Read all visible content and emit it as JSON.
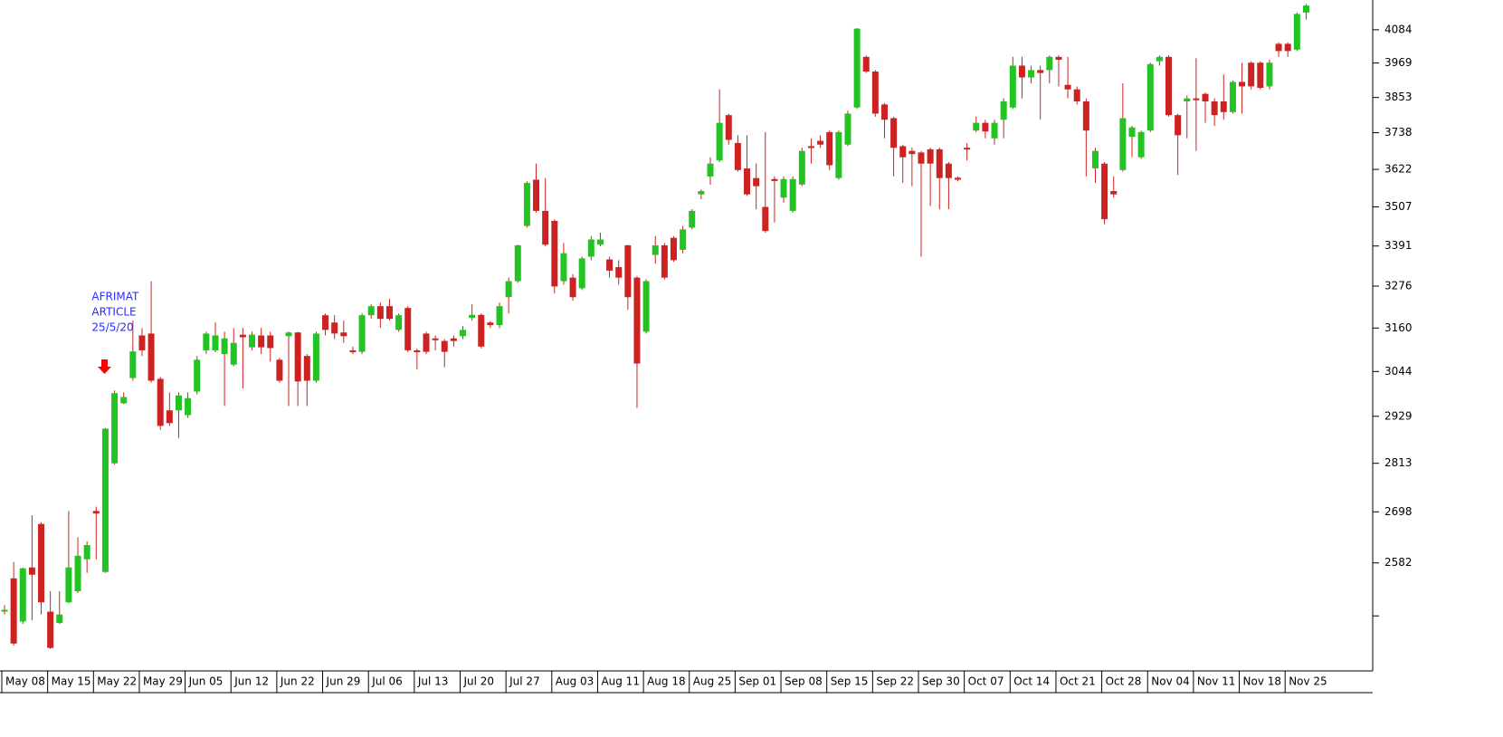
{
  "chart_data": {
    "type": "candlestick",
    "up_color": "#22c322",
    "down_color": "#cc2222",
    "wick_color": "#cc2222",
    "log_scale": true,
    "ylim": [
      2353,
      4190
    ],
    "yticks": [
      2582,
      2698,
      2813,
      2929,
      3044,
      3160,
      3276,
      3391,
      3507,
      3622,
      3738,
      3853,
      3969,
      4084
    ],
    "minor_yticks": [
      2467
    ],
    "xticks": [
      {
        "index": 0,
        "label": "May 08"
      },
      {
        "index": 5,
        "label": "May 15"
      },
      {
        "index": 10,
        "label": "May 22"
      },
      {
        "index": 15,
        "label": "May 29"
      },
      {
        "index": 20,
        "label": "Jun 05"
      },
      {
        "index": 25,
        "label": "Jun 12"
      },
      {
        "index": 30,
        "label": "Jun 22"
      },
      {
        "index": 35,
        "label": "Jun 29"
      },
      {
        "index": 40,
        "label": "Jul 06"
      },
      {
        "index": 45,
        "label": "Jul 13"
      },
      {
        "index": 50,
        "label": "Jul 20"
      },
      {
        "index": 55,
        "label": "Jul 27"
      },
      {
        "index": 60,
        "label": "Aug 03"
      },
      {
        "index": 65,
        "label": "Aug 11"
      },
      {
        "index": 70,
        "label": "Aug 18"
      },
      {
        "index": 75,
        "label": "Aug 25"
      },
      {
        "index": 80,
        "label": "Sep 01"
      },
      {
        "index": 85,
        "label": "Sep 08"
      },
      {
        "index": 90,
        "label": "Sep 15"
      },
      {
        "index": 95,
        "label": "Sep 22"
      },
      {
        "index": 100,
        "label": "Sep 30"
      },
      {
        "index": 105,
        "label": "Oct 07"
      },
      {
        "index": 110,
        "label": "Oct 14"
      },
      {
        "index": 115,
        "label": "Oct 21"
      },
      {
        "index": 120,
        "label": "Oct 28"
      },
      {
        "index": 125,
        "label": "Nov 04"
      },
      {
        "index": 130,
        "label": "Nov 11"
      },
      {
        "index": 135,
        "label": "Nov 18"
      },
      {
        "index": 140,
        "label": "Nov 25"
      }
    ],
    "annotation": {
      "lines": [
        "AFRIMAT",
        "ARTICLE",
        "25/5/20"
      ],
      "color": "#2a2aff",
      "index": 11
    },
    "candles": [
      [
        2478,
        2490,
        2470,
        2480
      ],
      [
        2548,
        2584,
        2405,
        2409
      ],
      [
        2455,
        2572,
        2450,
        2570
      ],
      [
        2572,
        2690,
        2458,
        2556
      ],
      [
        2670,
        2674,
        2470,
        2496
      ],
      [
        2476,
        2520,
        2398,
        2400
      ],
      [
        2452,
        2520,
        2450,
        2470
      ],
      [
        2496,
        2700,
        2494,
        2572
      ],
      [
        2520,
        2640,
        2516,
        2598
      ],
      [
        2590,
        2630,
        2560,
        2622
      ],
      [
        2700,
        2710,
        2590,
        2694
      ],
      [
        2562,
        2900,
        2560,
        2898
      ],
      [
        2813,
        2995,
        2810,
        2988
      ],
      [
        2962,
        2990,
        2960,
        2978
      ],
      [
        3027,
        3180,
        3020,
        3097
      ],
      [
        3140,
        3160,
        3085,
        3100
      ],
      [
        3145,
        3290,
        3015,
        3020
      ],
      [
        3025,
        3030,
        2895,
        2905
      ],
      [
        2944,
        2990,
        2905,
        2912
      ],
      [
        2944,
        2990,
        2875,
        2982
      ],
      [
        2932,
        2990,
        2925,
        2975
      ],
      [
        2992,
        3085,
        2985,
        3075
      ],
      [
        3100,
        3150,
        3090,
        3145
      ],
      [
        3100,
        3175,
        3095,
        3140
      ],
      [
        3090,
        3150,
        2955,
        3132
      ],
      [
        3062,
        3160,
        3058,
        3120
      ],
      [
        3142,
        3160,
        3000,
        3135
      ],
      [
        3108,
        3150,
        3100,
        3142
      ],
      [
        3140,
        3160,
        3090,
        3108
      ],
      [
        3140,
        3150,
        3070,
        3106
      ],
      [
        3075,
        3080,
        3015,
        3020
      ],
      [
        3138,
        3150,
        2955,
        3148
      ],
      [
        3148,
        3150,
        2955,
        3018
      ],
      [
        3085,
        3090,
        2955,
        3020
      ],
      [
        3020,
        3150,
        3015,
        3145
      ],
      [
        3195,
        3200,
        3140,
        3155
      ],
      [
        3175,
        3195,
        3130,
        3145
      ],
      [
        3148,
        3180,
        3120,
        3138
      ],
      [
        3100,
        3110,
        3090,
        3096
      ],
      [
        3096,
        3200,
        3090,
        3195
      ],
      [
        3195,
        3225,
        3185,
        3220
      ],
      [
        3220,
        3230,
        3160,
        3185
      ],
      [
        3220,
        3240,
        3180,
        3185
      ],
      [
        3155,
        3200,
        3150,
        3195
      ],
      [
        3215,
        3220,
        3095,
        3100
      ],
      [
        3100,
        3105,
        3050,
        3095
      ],
      [
        3145,
        3150,
        3090,
        3096
      ],
      [
        3132,
        3140,
        3100,
        3128
      ],
      [
        3125,
        3130,
        3055,
        3096
      ],
      [
        3132,
        3140,
        3110,
        3125
      ],
      [
        3138,
        3165,
        3130,
        3155
      ],
      [
        3188,
        3225,
        3180,
        3196
      ],
      [
        3196,
        3200,
        3105,
        3110
      ],
      [
        3175,
        3180,
        3160,
        3168
      ],
      [
        3168,
        3230,
        3160,
        3220
      ],
      [
        3245,
        3300,
        3200,
        3290
      ],
      [
        3290,
        3395,
        3285,
        3393
      ],
      [
        3450,
        3585,
        3445,
        3580
      ],
      [
        3590,
        3640,
        3490,
        3495
      ],
      [
        3495,
        3595,
        3390,
        3395
      ],
      [
        3465,
        3470,
        3255,
        3275
      ],
      [
        3290,
        3400,
        3280,
        3370
      ],
      [
        3300,
        3310,
        3235,
        3245
      ],
      [
        3270,
        3360,
        3265,
        3355
      ],
      [
        3360,
        3420,
        3350,
        3410
      ],
      [
        3395,
        3430,
        3390,
        3410
      ],
      [
        3352,
        3360,
        3300,
        3320
      ],
      [
        3330,
        3350,
        3280,
        3300
      ],
      [
        3393,
        3395,
        3210,
        3245
      ],
      [
        3300,
        3305,
        2950,
        3065
      ],
      [
        3150,
        3295,
        3145,
        3290
      ],
      [
        3365,
        3420,
        3340,
        3393
      ],
      [
        3393,
        3400,
        3295,
        3300
      ],
      [
        3415,
        3420,
        3345,
        3350
      ],
      [
        3380,
        3450,
        3370,
        3440
      ],
      [
        3445,
        3500,
        3440,
        3495
      ],
      [
        3545,
        3560,
        3530,
        3555
      ],
      [
        3600,
        3660,
        3575,
        3640
      ],
      [
        3650,
        3880,
        3645,
        3770
      ],
      [
        3795,
        3800,
        3700,
        3715
      ],
      [
        3705,
        3730,
        3615,
        3620
      ],
      [
        3625,
        3730,
        3540,
        3545
      ],
      [
        3595,
        3640,
        3500,
        3570
      ],
      [
        3507,
        3740,
        3430,
        3435
      ],
      [
        3592,
        3600,
        3460,
        3586
      ],
      [
        3535,
        3600,
        3520,
        3592
      ],
      [
        3495,
        3600,
        3490,
        3592
      ],
      [
        3575,
        3690,
        3570,
        3680
      ],
      [
        3695,
        3720,
        3640,
        3690
      ],
      [
        3712,
        3730,
        3690,
        3700
      ],
      [
        3740,
        3745,
        3620,
        3635
      ],
      [
        3595,
        3745,
        3590,
        3740
      ],
      [
        3700,
        3810,
        3695,
        3800
      ],
      [
        3820,
        4090,
        3815,
        4088
      ],
      [
        3990,
        3995,
        3935,
        3940
      ],
      [
        3940,
        3945,
        3790,
        3800
      ],
      [
        3830,
        3835,
        3720,
        3780
      ],
      [
        3785,
        3790,
        3600,
        3690
      ],
      [
        3695,
        3700,
        3580,
        3660
      ],
      [
        3680,
        3690,
        3570,
        3670
      ],
      [
        3675,
        3680,
        3360,
        3640
      ],
      [
        3685,
        3690,
        3510,
        3640
      ],
      [
        3685,
        3690,
        3500,
        3595
      ],
      [
        3640,
        3645,
        3500,
        3595
      ],
      [
        3596,
        3600,
        3585,
        3590
      ],
      [
        3690,
        3705,
        3650,
        3685
      ],
      [
        3745,
        3790,
        3740,
        3770
      ],
      [
        3770,
        3780,
        3720,
        3742
      ],
      [
        3720,
        3780,
        3700,
        3770
      ],
      [
        3780,
        3850,
        3720,
        3840
      ],
      [
        3820,
        3990,
        3815,
        3960
      ],
      [
        3960,
        3990,
        3850,
        3920
      ],
      [
        3920,
        3960,
        3900,
        3945
      ],
      [
        3945,
        3960,
        3780,
        3935
      ],
      [
        3945,
        3995,
        3900,
        3990
      ],
      [
        3990,
        3995,
        3890,
        3980
      ],
      [
        3895,
        3990,
        3850,
        3880
      ],
      [
        3880,
        3890,
        3830,
        3840
      ],
      [
        3840,
        3850,
        3600,
        3745
      ],
      [
        3625,
        3690,
        3580,
        3680
      ],
      [
        3640,
        3645,
        3455,
        3470
      ],
      [
        3555,
        3600,
        3535,
        3545
      ],
      [
        3620,
        3900,
        3615,
        3785
      ],
      [
        3725,
        3760,
        3660,
        3755
      ],
      [
        3660,
        3745,
        3655,
        3740
      ],
      [
        3745,
        3970,
        3740,
        3965
      ],
      [
        3975,
        3995,
        3960,
        3990
      ],
      [
        3990,
        3995,
        3790,
        3795
      ],
      [
        3795,
        3800,
        3605,
        3730
      ],
      [
        3840,
        3860,
        3720,
        3850
      ],
      [
        3850,
        3985,
        3680,
        3845
      ],
      [
        3865,
        3870,
        3770,
        3840
      ],
      [
        3840,
        3850,
        3760,
        3795
      ],
      [
        3840,
        3930,
        3780,
        3805
      ],
      [
        3805,
        3910,
        3800,
        3905
      ],
      [
        3905,
        3970,
        3800,
        3890
      ],
      [
        3970,
        3975,
        3880,
        3890
      ],
      [
        3970,
        3975,
        3880,
        3885
      ],
      [
        3890,
        3980,
        3880,
        3970
      ],
      [
        4035,
        4040,
        3990,
        4010
      ],
      [
        4035,
        4040,
        3990,
        4010
      ],
      [
        4015,
        4145,
        4010,
        4140
      ],
      [
        4145,
        4175,
        4120,
        4170
      ]
    ]
  }
}
